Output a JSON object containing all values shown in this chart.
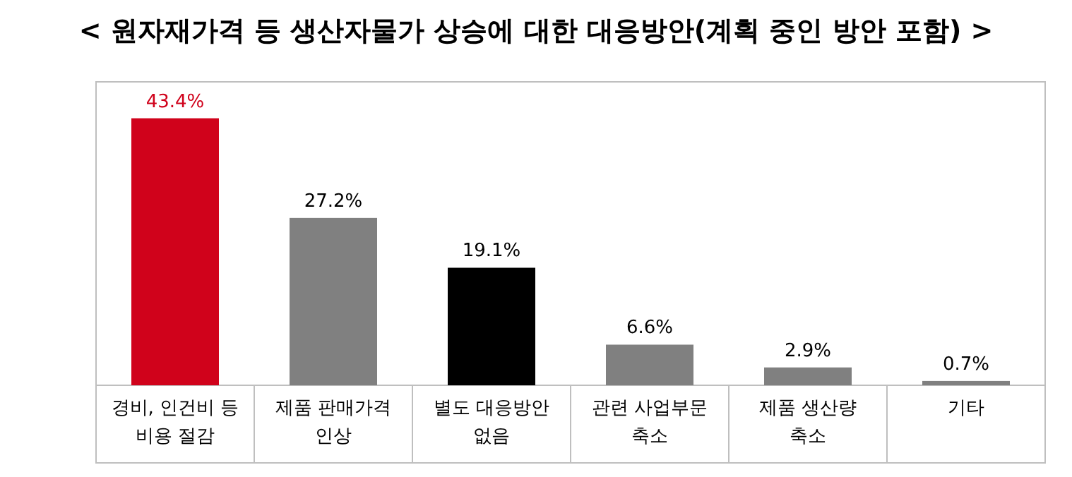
{
  "chart_data": {
    "type": "bar",
    "title": "< 원자재가격 등 생산자물가 상승에 대한 대응방안(계획 중인 방안 포함) >",
    "categories": [
      "경비, 인건비 등\n비용 절감",
      "제품 판매가격\n인상",
      "별도 대응방안\n없음",
      "관련 사업부문\n축소",
      "제품 생산량\n축소",
      "기타"
    ],
    "values": [
      43.4,
      27.2,
      19.1,
      6.6,
      2.9,
      0.7
    ],
    "value_labels": [
      "43.4%",
      "27.2%",
      "19.1%",
      "6.6%",
      "2.9%",
      "0.7%"
    ],
    "colors": [
      "#d0021b",
      "#808080",
      "#000000",
      "#808080",
      "#808080",
      "#808080"
    ]
  }
}
